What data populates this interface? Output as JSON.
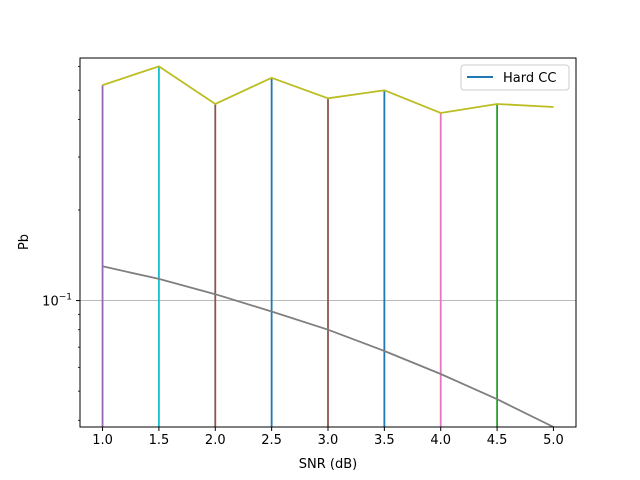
{
  "chart_data": {
    "type": "line",
    "xlabel": "SNR (dB)",
    "ylabel": "Pb",
    "yscale": "log",
    "xlim": [
      0.8,
      5.2
    ],
    "ylim": [
      0.038,
      0.64
    ],
    "grid": "horizontal line at 10^-1 only",
    "x_ticks": [
      "1.0",
      "1.5",
      "2.0",
      "2.5",
      "3.0",
      "3.5",
      "4.0",
      "4.5",
      "5.0"
    ],
    "y_tick_labels": [
      {
        "base": "10",
        "exp": "−1",
        "value": 0.1
      }
    ],
    "legend": {
      "placement": "top-right",
      "entries": [
        {
          "label": "Hard CC",
          "color": "#1f77b4"
        }
      ]
    },
    "curves": [
      {
        "label": "Hard CC",
        "color": "#bcbd22",
        "x": [
          1.0,
          1.5,
          2.0,
          2.5,
          3.0,
          3.5,
          4.0,
          4.5,
          5.0
        ],
        "y": [
          0.52,
          0.6,
          0.45,
          0.55,
          0.47,
          0.5,
          0.42,
          0.45,
          0.44
        ]
      },
      {
        "color": "#7f7f7f",
        "x": [
          1.0,
          1.5,
          2.0,
          2.5,
          3.0,
          3.5,
          4.0,
          4.5,
          5.0
        ],
        "y": [
          0.13,
          0.118,
          0.105,
          0.092,
          0.08,
          0.068,
          0.057,
          0.047,
          0.038
        ]
      }
    ],
    "vertical_lines": [
      {
        "x": 1.0,
        "y_top": 0.52,
        "color": "#9467bd"
      },
      {
        "x": 1.5,
        "y_top": 0.6,
        "color": "#17becf"
      },
      {
        "x": 2.0,
        "y_top": 0.45,
        "color": "#8c564b"
      },
      {
        "x": 2.5,
        "y_top": 0.55,
        "color": "#1f77b4"
      },
      {
        "x": 3.0,
        "y_top": 0.47,
        "color": "#8c564b"
      },
      {
        "x": 3.5,
        "y_top": 0.5,
        "color": "#1f77b4"
      },
      {
        "x": 4.0,
        "y_top": 0.42,
        "color": "#e377c2"
      },
      {
        "x": 4.5,
        "y_top": 0.45,
        "color": "#2ca02c"
      }
    ]
  }
}
